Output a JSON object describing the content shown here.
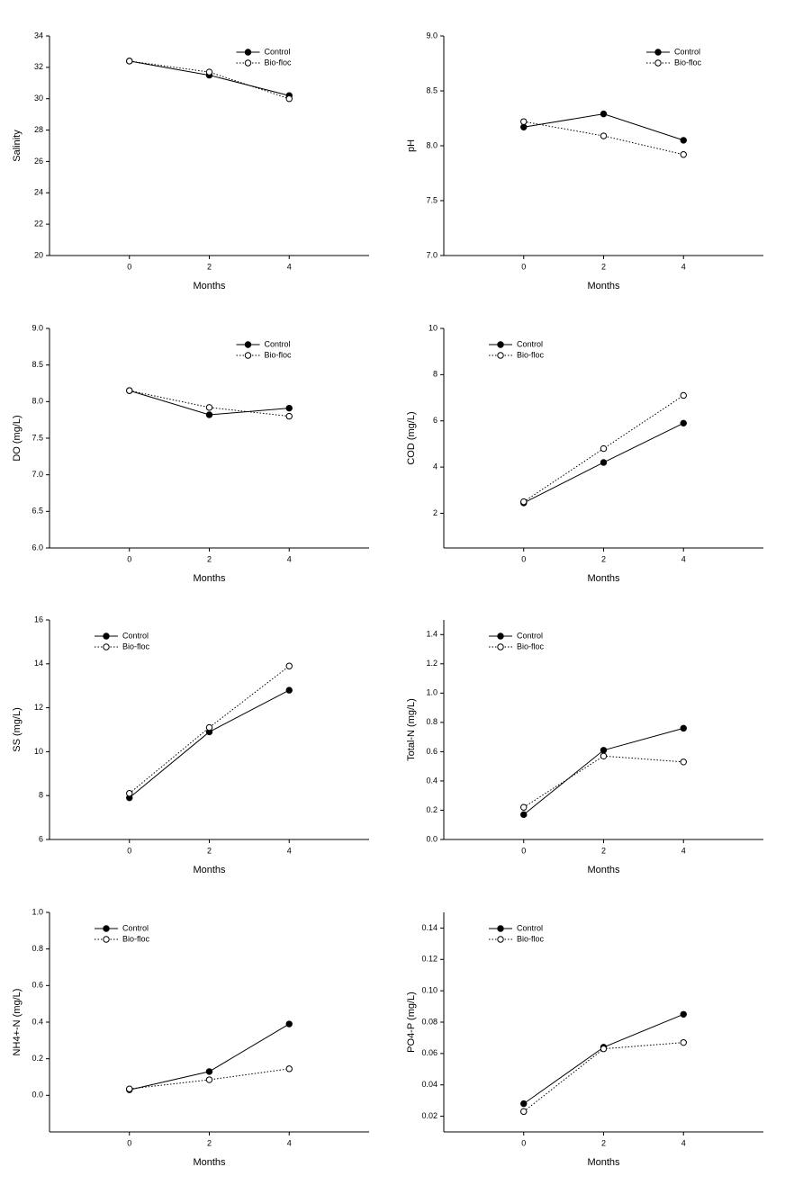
{
  "chart_data": [
    {
      "type": "line",
      "xlabel": "Months",
      "ylabel": "Salinity",
      "x": [
        0,
        2,
        4
      ],
      "xlim": [
        -2,
        6
      ],
      "xticks": [
        0,
        2,
        4
      ],
      "ylim": [
        20,
        34
      ],
      "yticks": [
        20,
        22,
        24,
        26,
        28,
        30,
        32,
        34
      ],
      "legend": "upper center",
      "series": [
        {
          "name": "Control",
          "color": "#000000",
          "marker_fill": "#000000",
          "linestyle": "solid",
          "values": [
            32.4,
            31.5,
            30.2
          ]
        },
        {
          "name": "Bio-floc",
          "color": "#000000",
          "marker_fill": "#ffffff",
          "linestyle": "dotted",
          "values": [
            32.4,
            31.7,
            30.0
          ]
        }
      ]
    },
    {
      "type": "line",
      "xlabel": "Months",
      "ylabel": "pH",
      "x": [
        0,
        2,
        4
      ],
      "xlim": [
        -2,
        6
      ],
      "xticks": [
        0,
        2,
        4
      ],
      "ylim": [
        7,
        9
      ],
      "yticks": [
        {
          "value": 7,
          "label": "7.0"
        },
        7.5,
        {
          "value": 8,
          "label": "8.0"
        },
        8.5,
        {
          "value": 9,
          "label": "9.0"
        }
      ],
      "legend": "upper right",
      "series": [
        {
          "name": "Control",
          "color": "#000000",
          "marker_fill": "#000000",
          "linestyle": "solid",
          "values": [
            8.17,
            8.29,
            8.05
          ]
        },
        {
          "name": "Bio-floc",
          "color": "#000000",
          "marker_fill": "#ffffff",
          "linestyle": "dotted",
          "values": [
            8.22,
            8.09,
            7.92
          ]
        }
      ]
    },
    {
      "type": "line",
      "xlabel": "Months",
      "ylabel": "DO (mg/L)",
      "x": [
        0,
        2,
        4
      ],
      "xlim": [
        -2,
        6
      ],
      "xticks": [
        0,
        2,
        4
      ],
      "ylim": [
        6,
        9
      ],
      "yticks": [
        {
          "value": 6,
          "label": "6.0"
        },
        6.5,
        {
          "value": 7,
          "label": "7.0"
        },
        7.5,
        {
          "value": 8,
          "label": "8.0"
        },
        8.5,
        {
          "value": 9,
          "label": "9.0"
        }
      ],
      "legend": "upper center",
      "series": [
        {
          "name": "Control",
          "color": "#000000",
          "marker_fill": "#000000",
          "linestyle": "solid",
          "values": [
            8.15,
            7.82,
            7.91
          ]
        },
        {
          "name": "Bio-floc",
          "color": "#000000",
          "marker_fill": "#ffffff",
          "linestyle": "dotted",
          "values": [
            8.15,
            7.92,
            7.8
          ]
        }
      ]
    },
    {
      "type": "line",
      "xlabel": "Months",
      "ylabel": "COD (mg/L)",
      "x": [
        0,
        2,
        4
      ],
      "xlim": [
        -2,
        6
      ],
      "xticks": [
        0,
        2,
        4
      ],
      "ylim": [
        0.5,
        10
      ],
      "yticks": [
        2,
        4,
        6,
        8,
        10
      ],
      "legend": "upper left",
      "series": [
        {
          "name": "Control",
          "color": "#000000",
          "marker_fill": "#000000",
          "linestyle": "solid",
          "values": [
            2.45,
            4.2,
            5.9
          ]
        },
        {
          "name": "Bio-floc",
          "color": "#000000",
          "marker_fill": "#ffffff",
          "linestyle": "dotted",
          "values": [
            2.5,
            4.8,
            7.1
          ]
        }
      ]
    },
    {
      "type": "line",
      "xlabel": "Months",
      "ylabel": "SS (mg/L)",
      "x": [
        0,
        2,
        4
      ],
      "xlim": [
        -2,
        6
      ],
      "xticks": [
        0,
        2,
        4
      ],
      "ylim": [
        6,
        16
      ],
      "yticks": [
        6,
        8,
        10,
        12,
        14,
        16
      ],
      "legend": "upper left",
      "series": [
        {
          "name": "Control",
          "color": "#000000",
          "marker_fill": "#000000",
          "linestyle": "solid",
          "values": [
            7.9,
            10.9,
            12.8
          ]
        },
        {
          "name": "Bio-floc",
          "color": "#000000",
          "marker_fill": "#ffffff",
          "linestyle": "dotted",
          "values": [
            8.1,
            11.1,
            13.9
          ]
        }
      ]
    },
    {
      "type": "line",
      "xlabel": "Months",
      "ylabel": "Total-N (mg/L)",
      "x": [
        0,
        2,
        4
      ],
      "xlim": [
        -2,
        6
      ],
      "xticks": [
        0,
        2,
        4
      ],
      "ylim": [
        0,
        1.5
      ],
      "yticks": [
        {
          "value": 0,
          "label": "0.0"
        },
        0.2,
        0.4,
        0.6,
        0.8,
        {
          "value": 1,
          "label": "1.0"
        },
        1.2,
        1.4
      ],
      "legend": "upper left",
      "series": [
        {
          "name": "Control",
          "color": "#000000",
          "marker_fill": "#000000",
          "linestyle": "solid",
          "values": [
            0.17,
            0.61,
            0.76
          ]
        },
        {
          "name": "Bio-floc",
          "color": "#000000",
          "marker_fill": "#ffffff",
          "linestyle": "dotted",
          "values": [
            0.22,
            0.57,
            0.53
          ]
        }
      ]
    },
    {
      "type": "line",
      "xlabel": "Months",
      "ylabel": "NH4+-N (mg/L)",
      "x": [
        0,
        2,
        4
      ],
      "xlim": [
        -2,
        6
      ],
      "xticks": [
        0,
        2,
        4
      ],
      "ylim": [
        -0.2,
        1
      ],
      "yticks": [
        {
          "value": 0,
          "label": "0.0"
        },
        0.2,
        0.4,
        0.6,
        0.8,
        {
          "value": 1,
          "label": "1.0"
        }
      ],
      "legend": "upper left",
      "series": [
        {
          "name": "Control",
          "color": "#000000",
          "marker_fill": "#000000",
          "linestyle": "solid",
          "values": [
            0.03,
            0.13,
            0.39
          ]
        },
        {
          "name": "Bio-floc",
          "color": "#000000",
          "marker_fill": "#ffffff",
          "linestyle": "dotted",
          "values": [
            0.035,
            0.085,
            0.145
          ]
        }
      ]
    },
    {
      "type": "line",
      "xlabel": "Months",
      "ylabel": "PO4-P (mg/L)",
      "x": [
        0,
        2,
        4
      ],
      "xlim": [
        -2,
        6
      ],
      "xticks": [
        0,
        2,
        4
      ],
      "ylim": [
        0.01,
        0.15
      ],
      "yticks": [
        0.02,
        0.04,
        0.06,
        0.08,
        {
          "value": 0.1,
          "label": "0.10"
        },
        0.12,
        0.14
      ],
      "legend": "upper left",
      "series": [
        {
          "name": "Control",
          "color": "#000000",
          "marker_fill": "#000000",
          "linestyle": "solid",
          "values": [
            0.028,
            0.064,
            0.085
          ]
        },
        {
          "name": "Bio-floc",
          "color": "#000000",
          "marker_fill": "#ffffff",
          "linestyle": "dotted",
          "values": [
            0.023,
            0.063,
            0.067
          ]
        }
      ]
    }
  ]
}
